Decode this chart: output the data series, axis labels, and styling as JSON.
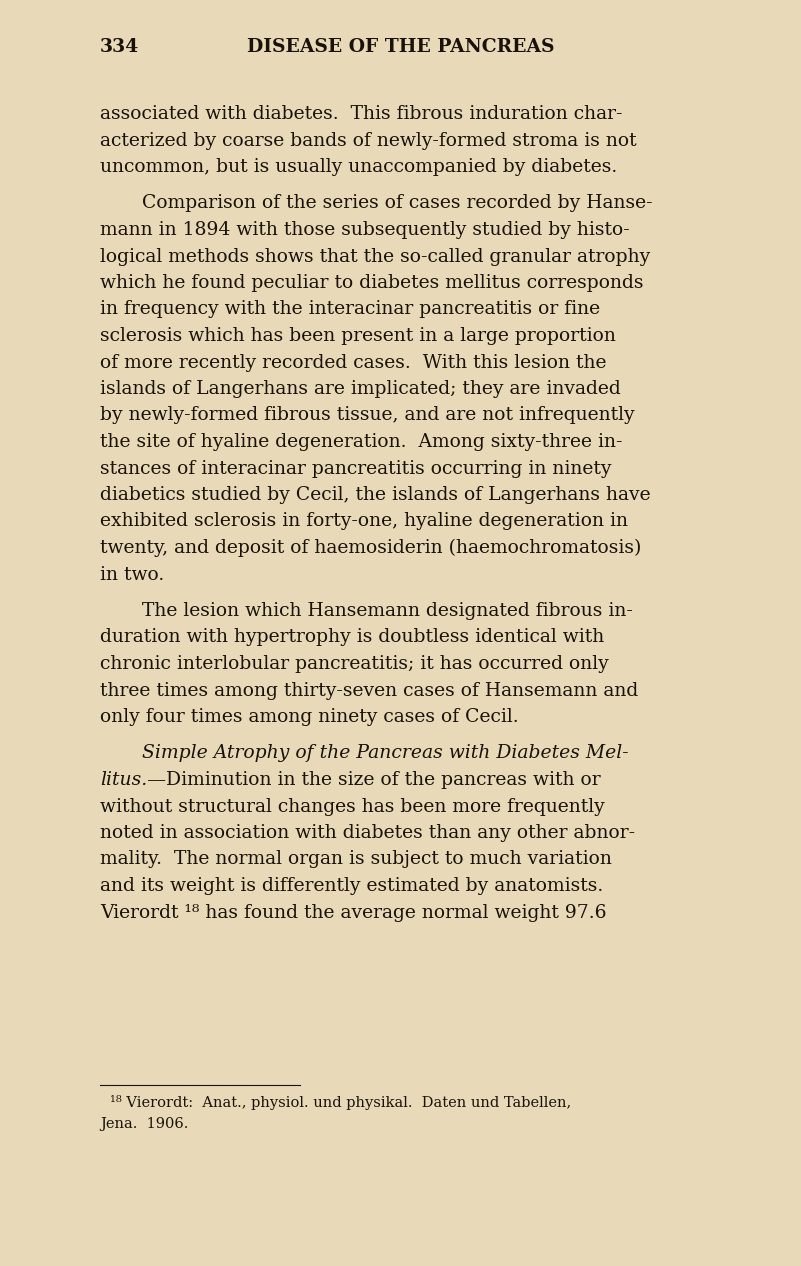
{
  "background_color": "#e8dab8",
  "page_number": "334",
  "header": "DISEASE OF THE PANCREAS",
  "text_color": "#1a1208",
  "font_size_body": 13.5,
  "font_size_header": 13.5,
  "font_size_footnote": 10.5,
  "paragraphs": [
    {
      "indent": false,
      "italic_start": false,
      "lines": [
        "associated with diabetes.  This fibrous induration char-",
        "acterized by coarse bands of newly-formed stroma is not",
        "uncommon, but is usually unaccompanied by diabetes."
      ]
    },
    {
      "indent": true,
      "italic_start": false,
      "lines": [
        "Comparison of the series of cases recorded by Hanse-",
        "mann in 1894 with those subsequently studied by histo-",
        "logical methods shows that the so-called granular atrophy",
        "which he found peculiar to diabetes mellitus corresponds",
        "in frequency with the interacinar pancreatitis or fine",
        "sclerosis which has been present in a large proportion",
        "of more recently recorded cases.  With this lesion the",
        "islands of Langerhans are implicated; they are invaded",
        "by newly-formed fibrous tissue, and are not infrequently",
        "the site of hyaline degeneration.  Among sixty-three in-",
        "stances of interacinar pancreatitis occurring in ninety",
        "diabetics studied by Cecil, the islands of Langerhans have",
        "exhibited sclerosis in forty-one, hyaline degeneration in",
        "twenty, and deposit of haemosiderin (haemochromatosis)",
        "in two."
      ]
    },
    {
      "indent": true,
      "italic_start": false,
      "lines": [
        "The lesion which Hansemann designated fibrous in-",
        "duration with hypertrophy is doubtless identical with",
        "chronic interlobular pancreatitis; it has occurred only",
        "three times among thirty-seven cases of Hansemann and",
        "only four times among ninety cases of Cecil."
      ]
    },
    {
      "indent": true,
      "italic_start": true,
      "italic_switch_line": 1,
      "italic_switch_char": 7,
      "lines": [
        "Simple Atrophy of the Pancreas with Diabetes Mel-",
        "litus.—Diminution in the size of the pancreas with or",
        "without structural changes has been more frequently",
        "noted in association with diabetes than any other abnor-",
        "mality.  The normal organ is subject to much variation",
        "and its weight is differently estimated by anatomists.",
        "Vierordt ¹⁸ has found the average normal weight 97.6"
      ]
    }
  ],
  "footnote_lines": [
    "¹⁸ Vierordt:  Anat., physiol. und physikal.  Daten und Tabellen,",
    "Jena.  1906."
  ]
}
